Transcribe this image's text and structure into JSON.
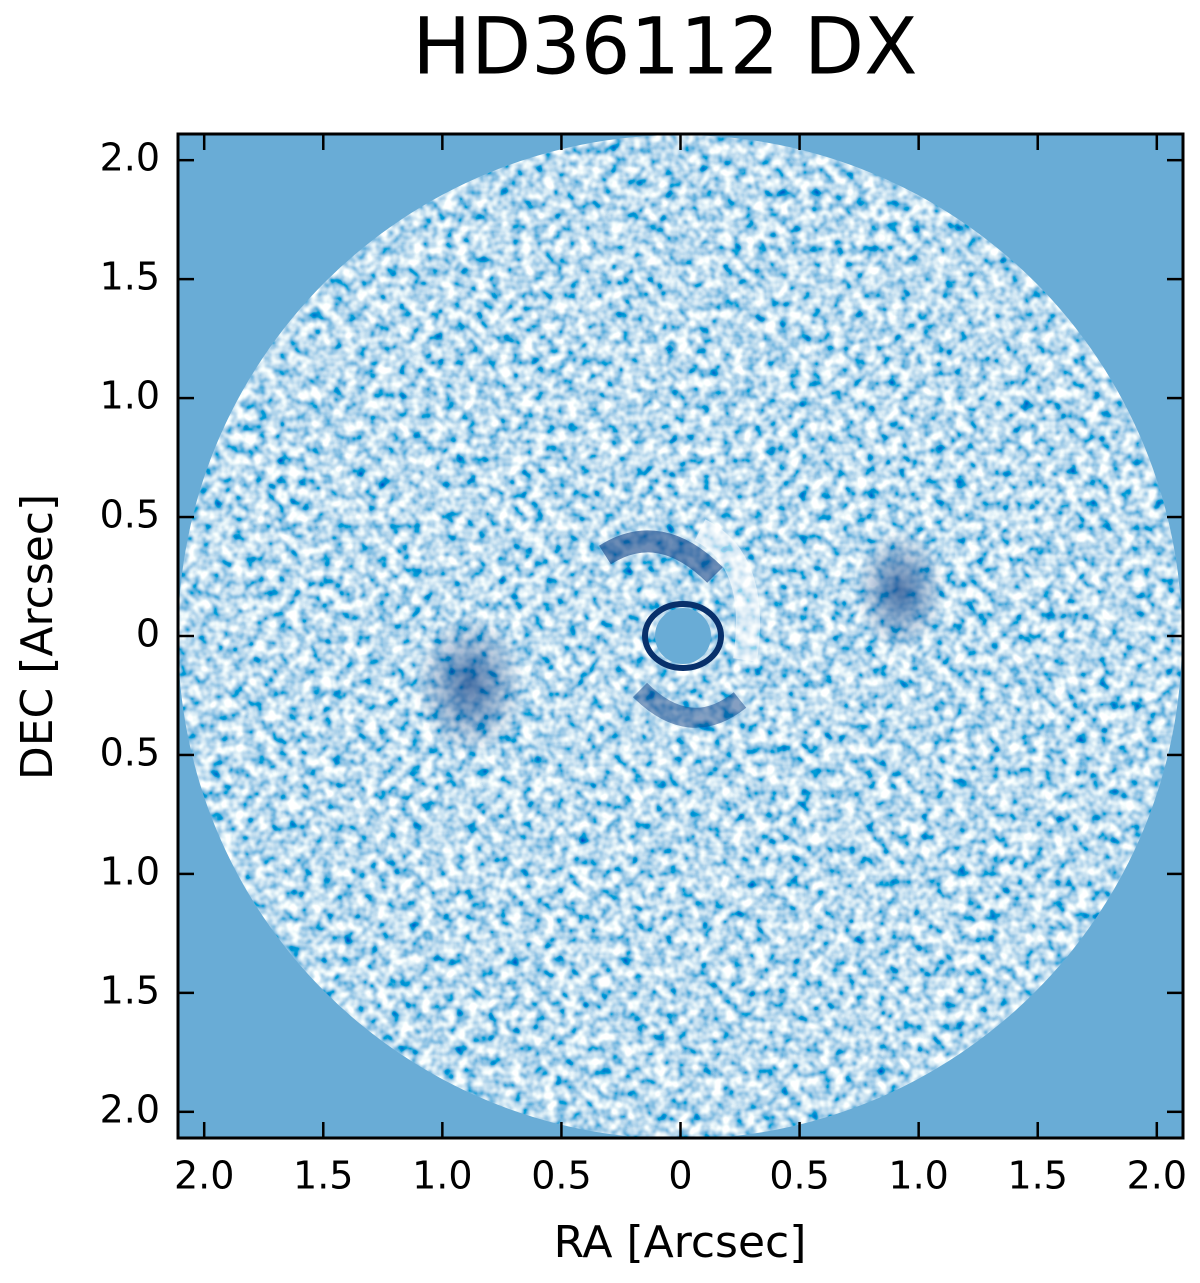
{
  "chart_data": {
    "type": "image",
    "title": "HD36112 DX",
    "xlabel": "RA [Arcsec]",
    "ylabel": "DEC [Arcsec]",
    "xlim": [
      2.11,
      -2.11
    ],
    "ylim": [
      -2.11,
      2.11
    ],
    "xticks": [
      {
        "value": 2,
        "label": "2.0"
      },
      {
        "value": 1.5,
        "label": "1.5"
      },
      {
        "value": 1,
        "label": "1.0"
      },
      {
        "value": 0.5,
        "label": "0.5"
      },
      0,
      {
        "value": -0.5,
        "label": "0.5"
      },
      {
        "value": -1,
        "label": "1.0"
      },
      {
        "value": -1.5,
        "label": "1.5"
      },
      {
        "value": -2,
        "label": "2.0"
      }
    ],
    "yticks": [
      {
        "value": 2,
        "label": "2.0"
      },
      {
        "value": 1.5,
        "label": "1.5"
      },
      {
        "value": 1,
        "label": "1.0"
      },
      {
        "value": 0.5,
        "label": "0.5"
      },
      0,
      {
        "value": -0.5,
        "label": "0.5"
      },
      {
        "value": -1,
        "label": "1.0"
      },
      {
        "value": -1.5,
        "label": "1.5"
      },
      {
        "value": -2,
        "label": "2.0"
      }
    ]
  }
}
